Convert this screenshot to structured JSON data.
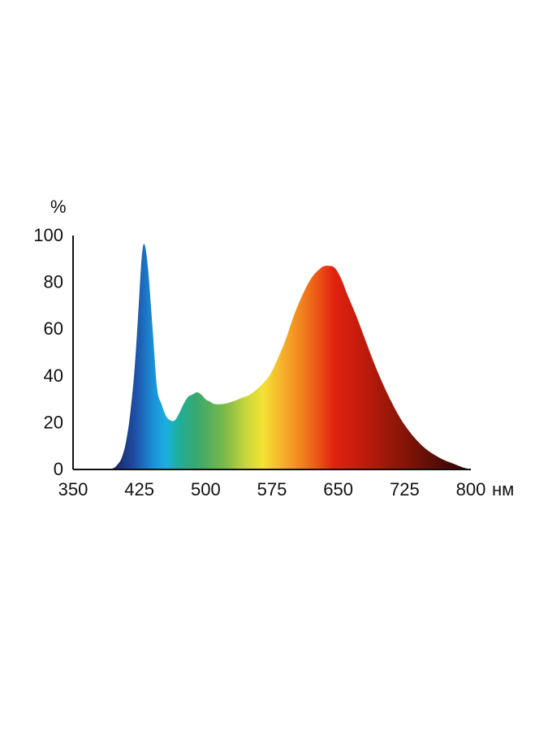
{
  "chart_data": {
    "type": "area",
    "ylabel": "%",
    "xlabel_unit": "нм",
    "xlim": [
      350,
      800
    ],
    "ylim": [
      0,
      100
    ],
    "x_ticks": [
      "350",
      "425",
      "500",
      "575",
      "650",
      "725",
      "800"
    ],
    "y_ticks": [
      "0",
      "20",
      "40",
      "60",
      "80",
      "100"
    ],
    "grid": false,
    "x": [
      350,
      385,
      395,
      400,
      405,
      410,
      415,
      420,
      425,
      428,
      431,
      435,
      440,
      445,
      450,
      455,
      460,
      465,
      470,
      475,
      480,
      485,
      490,
      495,
      500,
      505,
      510,
      520,
      530,
      540,
      550,
      560,
      570,
      575,
      580,
      590,
      600,
      610,
      620,
      630,
      635,
      640,
      645,
      650,
      655,
      660,
      670,
      680,
      690,
      700,
      710,
      720,
      730,
      740,
      750,
      760,
      770,
      780,
      790,
      800
    ],
    "values": [
      0,
      0,
      0.5,
      2,
      5,
      12,
      25,
      45,
      75,
      92,
      96,
      85,
      60,
      35,
      28,
      23,
      21,
      21,
      24,
      28,
      31,
      32,
      33,
      32,
      30,
      29,
      28,
      28,
      29,
      30.5,
      32,
      35,
      39,
      42,
      46,
      55,
      66,
      75,
      82,
      86,
      87,
      87,
      86.5,
      84,
      80,
      75,
      66,
      56,
      46,
      37,
      29,
      22,
      16.5,
      12,
      8.5,
      6,
      4,
      2.5,
      1,
      0
    ],
    "fill_gradient": [
      {
        "wavelength": 400,
        "color": "#1b2a6b"
      },
      {
        "wavelength": 420,
        "color": "#1f4fa6"
      },
      {
        "wavelength": 440,
        "color": "#1a8ed6"
      },
      {
        "wavelength": 455,
        "color": "#1ab0e0"
      },
      {
        "wavelength": 470,
        "color": "#1fae9a"
      },
      {
        "wavelength": 490,
        "color": "#3aa86c"
      },
      {
        "wavelength": 520,
        "color": "#76b84a"
      },
      {
        "wavelength": 545,
        "color": "#c8d63c"
      },
      {
        "wavelength": 565,
        "color": "#f4e234"
      },
      {
        "wavelength": 585,
        "color": "#f5b52c"
      },
      {
        "wavelength": 605,
        "color": "#f28a1f"
      },
      {
        "wavelength": 625,
        "color": "#ec5a17"
      },
      {
        "wavelength": 645,
        "color": "#e1230f"
      },
      {
        "wavelength": 675,
        "color": "#c41b0d"
      },
      {
        "wavelength": 720,
        "color": "#8a1608"
      },
      {
        "wavelength": 770,
        "color": "#4c0b05"
      },
      {
        "wavelength": 800,
        "color": "#2e0704"
      }
    ]
  }
}
